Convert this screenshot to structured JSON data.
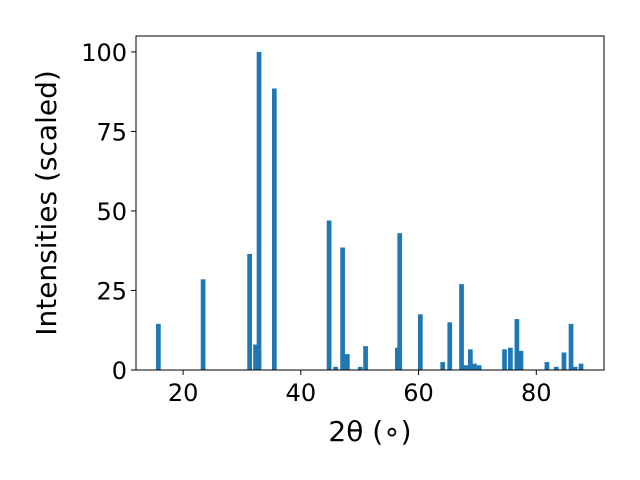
{
  "chart_data": {
    "type": "bar",
    "title": "",
    "xlabel": "2θ (∘)",
    "ylabel": "Intensities (scaled)",
    "xlim": [
      12,
      91.5
    ],
    "ylim": [
      0,
      105
    ],
    "xticks": [
      20,
      40,
      60,
      80
    ],
    "yticks": [
      0,
      25,
      50,
      75,
      100
    ],
    "bar_width": 0.8,
    "color": "#1f77b4",
    "grid": false,
    "points": [
      {
        "x": 15.8,
        "y": 14.5
      },
      {
        "x": 23.4,
        "y": 28.5
      },
      {
        "x": 31.3,
        "y": 36.5
      },
      {
        "x": 32.3,
        "y": 8.0
      },
      {
        "x": 32.9,
        "y": 100.0
      },
      {
        "x": 35.5,
        "y": 88.5
      },
      {
        "x": 44.8,
        "y": 47.0
      },
      {
        "x": 45.9,
        "y": 1.0
      },
      {
        "x": 47.1,
        "y": 38.5
      },
      {
        "x": 47.9,
        "y": 5.0
      },
      {
        "x": 50.1,
        "y": 1.0
      },
      {
        "x": 51.0,
        "y": 7.5
      },
      {
        "x": 56.4,
        "y": 7.0
      },
      {
        "x": 56.8,
        "y": 43.0
      },
      {
        "x": 60.3,
        "y": 17.5
      },
      {
        "x": 64.1,
        "y": 2.5
      },
      {
        "x": 65.3,
        "y": 15.0
      },
      {
        "x": 67.3,
        "y": 27.0
      },
      {
        "x": 68.0,
        "y": 1.5
      },
      {
        "x": 68.8,
        "y": 6.5
      },
      {
        "x": 69.5,
        "y": 2.0
      },
      {
        "x": 70.3,
        "y": 1.5
      },
      {
        "x": 74.6,
        "y": 6.5
      },
      {
        "x": 75.6,
        "y": 7.0
      },
      {
        "x": 76.7,
        "y": 16.0
      },
      {
        "x": 77.4,
        "y": 6.0
      },
      {
        "x": 81.8,
        "y": 2.5
      },
      {
        "x": 83.4,
        "y": 1.0
      },
      {
        "x": 84.7,
        "y": 5.5
      },
      {
        "x": 85.9,
        "y": 14.5
      },
      {
        "x": 86.6,
        "y": 1.0
      },
      {
        "x": 87.6,
        "y": 2.0
      }
    ]
  }
}
